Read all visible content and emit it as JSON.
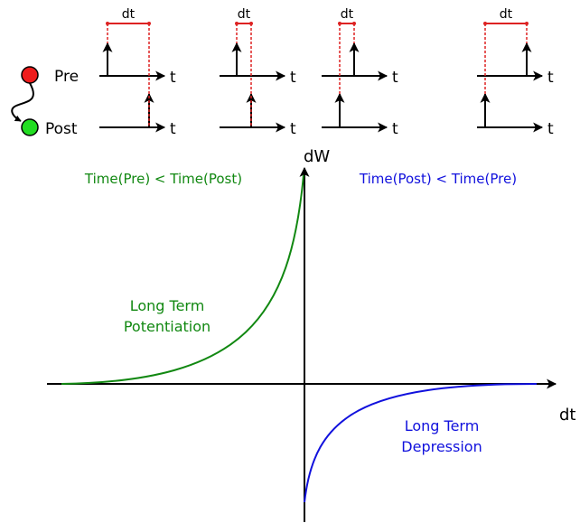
{
  "neurons": {
    "pre_label": "Pre",
    "post_label": "Post",
    "pre_color": "#ee1c1c",
    "post_color": "#22dd22"
  },
  "spike_panels": {
    "dt_label": "dt",
    "time_label": "t",
    "marker_color": "#dd2222",
    "panels": [
      {
        "order": "pre-first",
        "gap": "large"
      },
      {
        "order": "pre-first",
        "gap": "small"
      },
      {
        "order": "post-first",
        "gap": "small"
      },
      {
        "order": "post-first",
        "gap": "large"
      }
    ]
  },
  "plot": {
    "y_axis_label": "dW",
    "x_axis_label": "dt",
    "left_condition": "Time(Pre) < Time(Post)",
    "right_condition": "Time(Post) < Time(Pre)",
    "ltp_line1": "Long Term",
    "ltp_line2": "Potentiation",
    "ltd_line1": "Long Term",
    "ltd_line2": "Depression",
    "ltp_color": "#118811",
    "ltd_color": "#1111dd"
  }
}
